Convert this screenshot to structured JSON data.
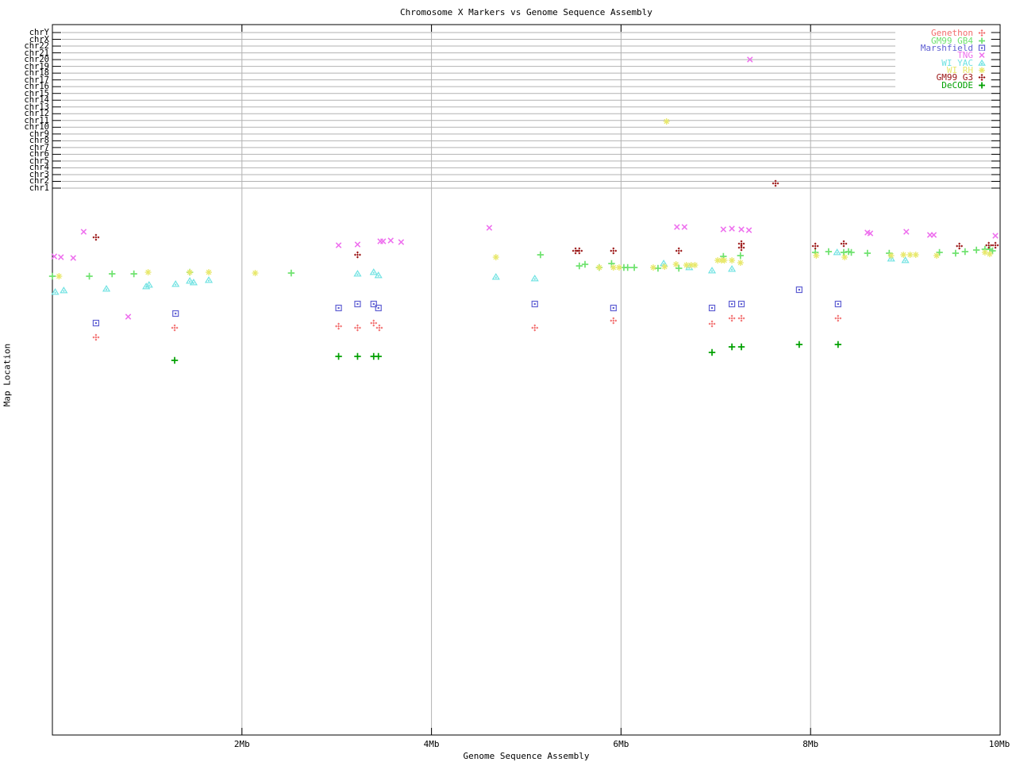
{
  "title": "Chromosome X Markers vs Genome Sequence Assembly",
  "axes": {
    "x_label": "Genome Sequence Assembly",
    "y_label": "Map Location",
    "x_tick_labels": [
      "2Mb",
      "4Mb",
      "6Mb",
      "8Mb",
      "10Mb"
    ],
    "y_categories": [
      "chrY",
      "chrX",
      "chr22",
      "chr21",
      "chr20",
      "chr19",
      "chr18",
      "chr17",
      "chr16",
      "chr15",
      "chr14",
      "chr13",
      "chr12",
      "chr11",
      "chr10",
      "chr9",
      "chr8",
      "chr7",
      "chr6",
      "chr5",
      "chr4",
      "chr3",
      "chr2",
      "chr1"
    ]
  },
  "colors": {
    "grid": "#b2b2b2",
    "axis": "#000000",
    "background": "#ffffff"
  },
  "chart_data": {
    "type": "scatter",
    "title": "Chromosome X Markers vs Genome Sequence Assembly",
    "xlabel": "Genome Sequence Assembly",
    "ylabel": "Map Location",
    "x_axis": {
      "units": "Mb",
      "range": [
        0,
        10
      ],
      "ticks": [
        2,
        4,
        6,
        8,
        10
      ],
      "tick_labels": [
        "2Mb",
        "4Mb",
        "6Mb",
        "8Mb",
        "10Mb"
      ],
      "grid": true
    },
    "y_axis": {
      "numeric_labels": false,
      "top_band_categories": [
        "chrY",
        "chrX",
        "chr22",
        "chr21",
        "chr20",
        "chr19",
        "chr18",
        "chr17",
        "chr16",
        "chr15",
        "chr14",
        "chr13",
        "chr12",
        "chr11",
        "chr10",
        "chr9",
        "chr8",
        "chr7",
        "chr6",
        "chr5",
        "chr4",
        "chr3",
        "chr2",
        "chr1"
      ],
      "grid": true
    },
    "legend_position": "top-right-inside",
    "y_point_units": "screen-pixels (no numeric scale printed on chart)",
    "series": [
      {
        "name": "Genethon",
        "marker": "diamond",
        "color": "#f26d6d",
        "points": [
          [
            0.46,
            425
          ],
          [
            1.29,
            413
          ],
          [
            3.02,
            411
          ],
          [
            3.22,
            413
          ],
          [
            3.39,
            407
          ],
          [
            3.45,
            413
          ],
          [
            5.09,
            413
          ],
          [
            5.92,
            404
          ],
          [
            6.96,
            408
          ],
          [
            7.17,
            401
          ],
          [
            7.27,
            401
          ],
          [
            8.29,
            401
          ]
        ]
      },
      {
        "name": "GM99 GB4",
        "marker": "plus",
        "color": "#6fe26f",
        "points": [
          [
            0.0,
            348
          ],
          [
            0.39,
            348
          ],
          [
            0.63,
            345
          ],
          [
            0.86,
            345
          ],
          [
            1.45,
            343
          ],
          [
            2.52,
            344
          ],
          [
            5.15,
            321
          ],
          [
            5.56,
            335
          ],
          [
            5.62,
            333
          ],
          [
            5.77,
            337
          ],
          [
            5.9,
            332
          ],
          [
            6.03,
            337
          ],
          [
            6.07,
            337
          ],
          [
            6.14,
            337
          ],
          [
            6.39,
            338
          ],
          [
            6.61,
            338
          ],
          [
            7.08,
            323
          ],
          [
            7.26,
            322
          ],
          [
            8.05,
            318
          ],
          [
            8.19,
            317
          ],
          [
            8.35,
            318
          ],
          [
            8.4,
            317
          ],
          [
            8.43,
            318
          ],
          [
            8.6,
            319
          ],
          [
            8.83,
            319
          ],
          [
            9.36,
            318
          ],
          [
            9.53,
            319
          ],
          [
            9.63,
            317
          ],
          [
            9.75,
            315
          ],
          [
            9.84,
            314
          ],
          [
            9.89,
            314
          ],
          [
            9.92,
            316
          ]
        ]
      },
      {
        "name": "Marshfield",
        "marker": "square",
        "color": "#5f5fd3",
        "points": [
          [
            0.46,
            407
          ],
          [
            1.3,
            395
          ],
          [
            3.02,
            388
          ],
          [
            3.22,
            383
          ],
          [
            3.39,
            383
          ],
          [
            3.44,
            388
          ],
          [
            5.09,
            383
          ],
          [
            5.92,
            388
          ],
          [
            6.96,
            388
          ],
          [
            7.17,
            383
          ],
          [
            7.27,
            383
          ],
          [
            7.88,
            365
          ],
          [
            8.29,
            383
          ]
        ]
      },
      {
        "name": "TNG",
        "marker": "cross",
        "color": "#ee6fee",
        "points": [
          [
            0.02,
            323
          ],
          [
            0.09,
            324
          ],
          [
            0.22,
            325
          ],
          [
            0.33,
            292
          ],
          [
            0.8,
            399
          ],
          [
            3.02,
            309
          ],
          [
            3.22,
            308
          ],
          [
            3.46,
            304
          ],
          [
            3.49,
            304
          ],
          [
            3.57,
            303
          ],
          [
            3.68,
            305
          ],
          [
            4.61,
            287
          ],
          [
            6.59,
            286
          ],
          [
            6.67,
            286
          ],
          [
            7.08,
            289
          ],
          [
            7.17,
            288
          ],
          [
            7.27,
            289
          ],
          [
            7.35,
            290
          ],
          [
            8.6,
            293
          ],
          [
            8.63,
            294
          ],
          [
            9.01,
            292
          ],
          [
            9.26,
            296
          ],
          [
            9.3,
            296
          ],
          [
            9.95,
            297
          ],
          [
            7.36,
            75
          ]
        ]
      },
      {
        "name": "WI YAC",
        "marker": "triangle",
        "color": "#6fe2e2",
        "points": [
          [
            0.03,
            368
          ],
          [
            0.12,
            366
          ],
          [
            0.57,
            364
          ],
          [
            0.99,
            361
          ],
          [
            1.02,
            359
          ],
          [
            1.3,
            358
          ],
          [
            1.45,
            354
          ],
          [
            1.49,
            356
          ],
          [
            1.65,
            353
          ],
          [
            3.22,
            345
          ],
          [
            3.39,
            343
          ],
          [
            3.44,
            347
          ],
          [
            4.68,
            349
          ],
          [
            5.09,
            351
          ],
          [
            6.45,
            332
          ],
          [
            6.72,
            337
          ],
          [
            6.96,
            341
          ],
          [
            7.17,
            339
          ],
          [
            8.28,
            318
          ],
          [
            8.85,
            326
          ],
          [
            9.0,
            328
          ]
        ]
      },
      {
        "name": "WI RH",
        "marker": "star",
        "color": "#e8e86c",
        "points": [
          [
            0.07,
            348
          ],
          [
            1.01,
            343
          ],
          [
            1.45,
            343
          ],
          [
            1.65,
            343
          ],
          [
            2.14,
            344
          ],
          [
            4.68,
            324
          ],
          [
            5.77,
            337
          ],
          [
            5.92,
            337
          ],
          [
            5.98,
            337
          ],
          [
            6.34,
            337
          ],
          [
            6.46,
            336
          ],
          [
            6.58,
            333
          ],
          [
            6.69,
            334
          ],
          [
            6.74,
            334
          ],
          [
            6.78,
            334
          ],
          [
            7.02,
            328
          ],
          [
            7.06,
            328
          ],
          [
            7.09,
            328
          ],
          [
            7.17,
            328
          ],
          [
            7.26,
            331
          ],
          [
            8.06,
            322
          ],
          [
            8.36,
            324
          ],
          [
            8.85,
            322
          ],
          [
            8.98,
            321
          ],
          [
            9.05,
            321
          ],
          [
            9.11,
            321
          ],
          [
            9.33,
            322
          ],
          [
            9.84,
            318
          ],
          [
            9.89,
            320
          ],
          [
            6.48,
            153
          ]
        ]
      },
      {
        "name": "GM99 G3",
        "marker": "diamond",
        "color": "#991111",
        "points": [
          [
            0.46,
            299
          ],
          [
            3.22,
            321
          ],
          [
            5.52,
            316
          ],
          [
            5.56,
            316
          ],
          [
            5.92,
            316
          ],
          [
            6.61,
            316
          ],
          [
            7.27,
            307
          ],
          [
            7.27,
            312
          ],
          [
            8.05,
            310
          ],
          [
            8.35,
            307
          ],
          [
            9.57,
            310
          ],
          [
            9.88,
            309
          ],
          [
            9.95,
            309
          ],
          [
            7.63,
            231
          ]
        ]
      },
      {
        "name": "DeCODE",
        "marker": "plus",
        "color": "#00a000",
        "points": [
          [
            1.29,
            454
          ],
          [
            3.02,
            449
          ],
          [
            3.22,
            449
          ],
          [
            3.39,
            449
          ],
          [
            3.44,
            449
          ],
          [
            6.96,
            444
          ],
          [
            7.17,
            437
          ],
          [
            7.27,
            437
          ],
          [
            7.88,
            434
          ],
          [
            8.29,
            434
          ]
        ]
      }
    ]
  }
}
